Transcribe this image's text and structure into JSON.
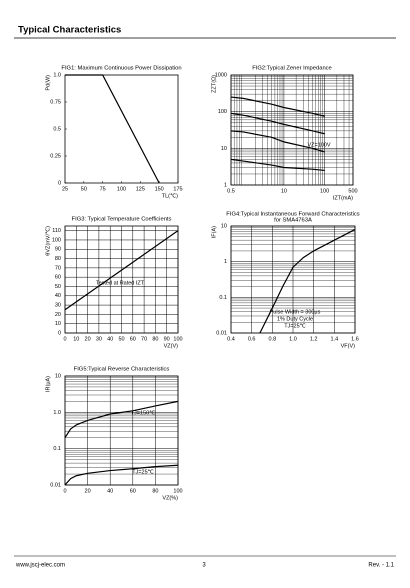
{
  "header": {
    "title": "Typical Characteristics"
  },
  "chart_data": [
    {
      "type": "line",
      "title": "FIG1: Maximum Continuous Power Dissipation",
      "ylabel": "Pd(W)",
      "xlabel": "TL(℃)",
      "xlim": [
        25,
        175
      ],
      "ylim": [
        0,
        1
      ],
      "xticks": [
        25,
        50,
        75,
        100,
        125,
        150,
        175
      ],
      "yticks": [
        0,
        0.25,
        0.5,
        0.75,
        {
          "value": 1,
          "label": "1.0"
        }
      ],
      "grid": false,
      "series": [
        {
          "color": "#000000",
          "x": [
            25,
            75,
            150
          ],
          "values": [
            1,
            1,
            0
          ]
        }
      ],
      "annotations": []
    },
    {
      "type": "line",
      "title": "FIG2:Typical Zener Impedance",
      "ylabel": "ZZT(Ω)",
      "xlabel": "IZT(mA)",
      "xlim": [
        0.5,
        500
      ],
      "ylim": [
        1,
        1000
      ],
      "xlog": true,
      "ylog": true,
      "xticks": [
        0.5,
        10,
        100,
        500
      ],
      "yticks": [
        1,
        10,
        100,
        1000
      ],
      "grid": true,
      "minor_grid": true,
      "series": [
        {
          "color": "#000000",
          "x": [
            0.5,
            1,
            5,
            10,
            50,
            100
          ],
          "values": [
            250,
            230,
            160,
            130,
            90,
            75
          ]
        },
        {
          "color": "#000000",
          "x": [
            0.5,
            1,
            5,
            10,
            50,
            100
          ],
          "values": [
            90,
            80,
            55,
            45,
            30,
            25
          ]
        },
        {
          "color": "#000000",
          "x": [
            0.5,
            1,
            5,
            10,
            50,
            100
          ],
          "values": [
            30,
            28,
            20,
            15,
            10,
            8
          ]
        },
        {
          "color": "#000000",
          "x": [
            0.5,
            1,
            5,
            10,
            50,
            100
          ],
          "values": [
            5,
            4.5,
            3.5,
            3,
            2.7,
            2.5
          ]
        }
      ],
      "annotations": [
        "VZ=100V"
      ]
    },
    {
      "type": "line",
      "title": "FIG3: Typical Temperature Coefficients",
      "ylabel": "θVZ(mV/℃)",
      "xlabel": "VZ(V)",
      "xlim": [
        0,
        100
      ],
      "ylim": [
        0,
        115
      ],
      "xticks": [
        0,
        10,
        20,
        30,
        40,
        50,
        60,
        70,
        80,
        90,
        100
      ],
      "yticks": [
        0,
        10,
        20,
        30,
        40,
        50,
        60,
        70,
        80,
        90,
        100,
        110
      ],
      "grid": true,
      "series": [
        {
          "color": "#000000",
          "x": [
            0,
            100
          ],
          "values": [
            25,
            110
          ]
        }
      ],
      "annotations": [
        "Tested at Rated IZT"
      ]
    },
    {
      "type": "line",
      "title": "FIG4:Typical Instantaneous Forward Characteristics",
      "subtitle": "for SMA4763A",
      "ylabel": "IF(A)",
      "xlabel": "VF(V)",
      "xlim": [
        0.4,
        1.6
      ],
      "ylim": [
        0.01,
        10
      ],
      "ylog": true,
      "xticks": [
        0.4,
        0.6,
        0.8,
        {
          "value": 1,
          "label": "1.0"
        },
        1.2,
        1.4,
        1.6
      ],
      "yticks": [
        0.01,
        0.1,
        1,
        10
      ],
      "grid": true,
      "minor_grid": true,
      "series": [
        {
          "color": "#000000",
          "x": [
            0.68,
            0.8,
            0.9,
            1.0,
            1.1,
            1.2,
            1.4,
            1.6
          ],
          "values": [
            0.01,
            0.05,
            0.2,
            0.7,
            1.3,
            2,
            4,
            8
          ]
        }
      ],
      "annotations": [
        "Pulse Width = 300μs",
        "1% Duty Cycle",
        "TJ=25℃"
      ]
    },
    {
      "type": "line",
      "title": "FIG5:Typical Reverse Characteristics",
      "ylabel": "IR(μA)",
      "xlabel": "VZ(%)",
      "xlim": [
        0,
        100
      ],
      "ylim": [
        0.01,
        10
      ],
      "ylog": true,
      "xticks": [
        0,
        20,
        40,
        60,
        80,
        100
      ],
      "yticks": [
        0.01,
        0.1,
        {
          "value": 1,
          "label": "1.0"
        },
        10
      ],
      "grid": true,
      "minor_grid": true,
      "series": [
        {
          "color": "#000000",
          "x": [
            0,
            5,
            10,
            20,
            40,
            60,
            80,
            100
          ],
          "values": [
            0.2,
            0.35,
            0.45,
            0.6,
            0.9,
            1.1,
            1.5,
            2
          ]
        },
        {
          "color": "#000000",
          "x": [
            0,
            5,
            10,
            20,
            40,
            60,
            80,
            100
          ],
          "values": [
            0.01,
            0.015,
            0.018,
            0.021,
            0.025,
            0.028,
            0.032,
            0.035
          ]
        }
      ],
      "annotations": [
        "TJ=150℃",
        "TJ=25℃"
      ]
    }
  ],
  "footer": {
    "website": "www.jscj-elec.com",
    "page": "3",
    "revision": "Rev. - 1.1"
  }
}
